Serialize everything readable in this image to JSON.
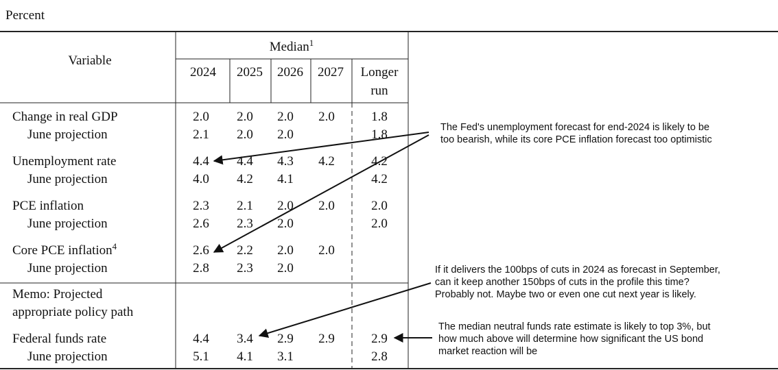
{
  "unit": "Percent",
  "table": {
    "header": {
      "variable": "Variable",
      "median": "Median",
      "median_note": "1",
      "years": [
        "2024",
        "2025",
        "2026",
        "2027"
      ],
      "longer_run": [
        "Longer",
        "run"
      ]
    },
    "groups": [
      {
        "main": {
          "label": "Change in real GDP",
          "values": [
            "2.0",
            "2.0",
            "2.0",
            "2.0",
            "1.8"
          ]
        },
        "june": {
          "label": "June projection",
          "values": [
            "2.1",
            "2.0",
            "2.0",
            null,
            "1.8"
          ]
        }
      },
      {
        "main": {
          "label": "Unemployment rate",
          "values": [
            "4.4",
            "4.4",
            "4.3",
            "4.2",
            "4.2"
          ]
        },
        "june": {
          "label": "June projection",
          "values": [
            "4.0",
            "4.2",
            "4.1",
            null,
            "4.2"
          ]
        }
      },
      {
        "main": {
          "label": "PCE inflation",
          "values": [
            "2.3",
            "2.1",
            "2.0",
            "2.0",
            "2.0"
          ]
        },
        "june": {
          "label": "June projection",
          "values": [
            "2.6",
            "2.3",
            "2.0",
            null,
            "2.0"
          ]
        }
      },
      {
        "main": {
          "label": "Core PCE inflation",
          "note": "4",
          "values": [
            "2.6",
            "2.2",
            "2.0",
            "2.0",
            null
          ]
        },
        "june": {
          "label": "June projection",
          "values": [
            "2.8",
            "2.3",
            "2.0",
            null,
            null
          ]
        }
      }
    ],
    "memo": [
      "Memo: Projected",
      "appropriate policy path"
    ],
    "policy": {
      "main": {
        "label": "Federal funds rate",
        "values": [
          "4.4",
          "3.4",
          "2.9",
          "2.9",
          "2.9"
        ]
      },
      "june": {
        "label": "June projection",
        "values": [
          "5.1",
          "4.1",
          "3.1",
          null,
          "2.8"
        ]
      }
    }
  },
  "annotations": [
    [
      "The Fed's unemployment forecast for end-2024 is likely to be",
      "too bearish, while its core PCE inflation forecast too optimistic"
    ],
    [
      "If it delivers the 100bps of cuts in 2024 as forecast in September,",
      "can it keep another 150bps of cuts in the profile this time?",
      "Probably not. Maybe two or even one cut next year is likely."
    ],
    [
      "The median neutral funds rate estimate is likely to top 3%, but",
      "how much above will determine how significant the US bond",
      "market reaction will be"
    ]
  ]
}
